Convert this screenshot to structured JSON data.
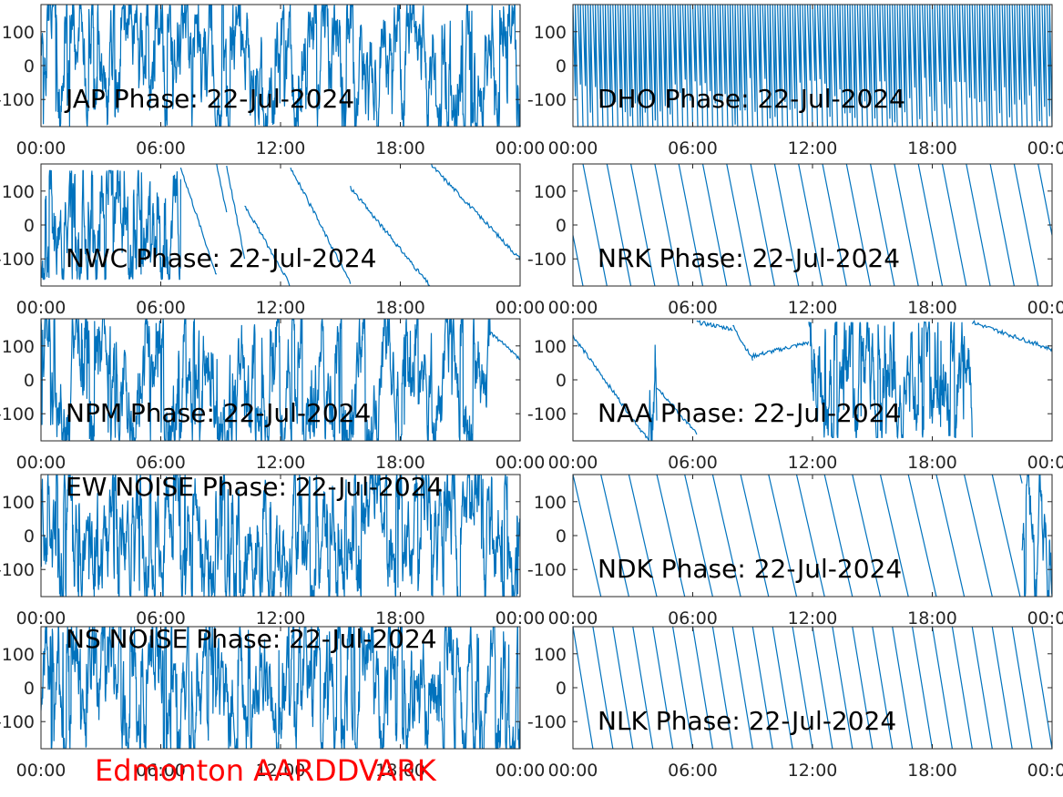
{
  "figure": {
    "footer_text": "Edmonton AARDDVARK",
    "footer_color": "#ff0000",
    "line_color": "#0072bd"
  },
  "chart_data": [
    {
      "type": "line",
      "title": "JAP Phase: 22-Jul-2024",
      "xlabel": "",
      "ylabel": "",
      "x_ticks": [
        "00:00",
        "06:00",
        "12:00",
        "18:00",
        "00:00"
      ],
      "y_ticks": [
        "-100",
        "0",
        "100"
      ],
      "xlim_hours": [
        0,
        24
      ],
      "ylim": [
        -180,
        180
      ],
      "grid": false,
      "series": [
        {
          "pattern": "noise",
          "params": [
            20,
            1,
            0.95,
            7
          ]
        }
      ]
    },
    {
      "type": "line",
      "title": "DHO Phase: 22-Jul-2024",
      "xlabel": "",
      "ylabel": "",
      "x_ticks": [
        "00:00",
        "06:00",
        "12:00",
        "18:00",
        "00:00"
      ],
      "y_ticks": [
        "-100",
        "0",
        "100"
      ],
      "xlim_hours": [
        0,
        24
      ],
      "ylim": [
        -180,
        180
      ],
      "grid": false,
      "series": [
        {
          "pattern": "fastwrap",
          "params": [
            0.25,
            11
          ]
        }
      ]
    },
    {
      "type": "line",
      "title": "NWC Phase: 22-Jul-2024",
      "xlabel": "",
      "ylabel": "",
      "x_ticks": [
        "00:00",
        "06:00",
        "12:00",
        "18:00",
        "00:00"
      ],
      "y_ticks": [
        "-100",
        "0",
        "100"
      ],
      "xlim_hours": [
        0,
        24
      ],
      "ylim": [
        -180,
        180
      ],
      "grid": false,
      "series": [
        {
          "pattern": "piecewise",
          "segments": [
            [
              0,
              7,
              "noise",
              160
            ],
            [
              7,
              8.8,
              "ramp",
              170,
              -150
            ],
            [
              8.8,
              9.3,
              "ramp",
              175,
              40
            ],
            [
              9.3,
              10.2,
              "ramp",
              175,
              -100
            ],
            [
              10.2,
              12.5,
              "ramp",
              60,
              -180
            ],
            [
              12.5,
              15.5,
              "ramp",
              170,
              -170
            ],
            [
              15.5,
              19.5,
              "ramp",
              110,
              -180
            ],
            [
              19.5,
              24,
              "ramp",
              180,
              -100
            ]
          ]
        }
      ]
    },
    {
      "type": "line",
      "title": "NRK Phase: 22-Jul-2024",
      "xlabel": "",
      "ylabel": "",
      "x_ticks": [
        "00:00",
        "06:00",
        "12:00",
        "18:00",
        "00:00"
      ],
      "y_ticks": [
        "-100",
        "0",
        "100"
      ],
      "xlim_hours": [
        0,
        24
      ],
      "ylim": [
        -180,
        180
      ],
      "grid": false,
      "series": [
        {
          "pattern": "sawtooth",
          "params": [
            1.2,
            5
          ]
        }
      ]
    },
    {
      "type": "line",
      "title": "NPM Phase: 22-Jul-2024",
      "xlabel": "",
      "ylabel": "",
      "x_ticks": [
        "00:00",
        "06:00",
        "12:00",
        "18:00",
        "00:00"
      ],
      "y_ticks": [
        "-100",
        "0",
        "100"
      ],
      "xlim_hours": [
        0,
        24
      ],
      "ylim": [
        -180,
        180
      ],
      "grid": false,
      "series": [
        {
          "pattern": "piecewise",
          "segments": [
            [
              0,
              22.5,
              "noise",
              180
            ],
            [
              22.5,
              24,
              "ramp",
              140,
              60
            ]
          ]
        }
      ]
    },
    {
      "type": "line",
      "title": "NAA Phase: 22-Jul-2024",
      "xlabel": "",
      "ylabel": "",
      "x_ticks": [
        "00:00",
        "06:00",
        "12:00",
        "18:00",
        "00:00"
      ],
      "y_ticks": [
        "-100",
        "0",
        "100"
      ],
      "xlim_hours": [
        0,
        24
      ],
      "ylim": [
        -180,
        180
      ],
      "grid": false,
      "series": [
        {
          "pattern": "piecewise",
          "segments": [
            [
              0,
              3.8,
              "ramp",
              130,
              -180
            ],
            [
              3.8,
              4.2,
              "noise",
              180
            ],
            [
              4.2,
              6.2,
              "ramp",
              -20,
              -160
            ],
            [
              6.2,
              8.0,
              "ramp",
              170,
              150
            ],
            [
              8.0,
              9.0,
              "ramp",
              160,
              60
            ],
            [
              9.0,
              11.8,
              "ramp",
              70,
              110
            ],
            [
              11.8,
              20.0,
              "noise",
              170
            ],
            [
              20.0,
              24,
              "ramp",
              170,
              90
            ]
          ]
        }
      ]
    },
    {
      "type": "line",
      "title": "EW NOISE Phase: 22-Jul-2024",
      "xlabel": "",
      "ylabel": "",
      "x_ticks": [
        "00:00",
        "06:00",
        "12:00",
        "18:00",
        "00:00"
      ],
      "y_ticks": [
        "-100",
        "0",
        "100"
      ],
      "xlim_hours": [
        0,
        24
      ],
      "ylim": [
        -180,
        180
      ],
      "grid": false,
      "series": [
        {
          "pattern": "noise",
          "params": [
            20,
            1,
            0.95,
            13
          ]
        }
      ]
    },
    {
      "type": "line",
      "title": "NDK Phase: 22-Jul-2024",
      "xlabel": "",
      "ylabel": "",
      "x_ticks": [
        "00:00",
        "06:00",
        "12:00",
        "18:00",
        "00:00"
      ],
      "y_ticks": [
        "-100",
        "0",
        "100"
      ],
      "xlim_hours": [
        0,
        24
      ],
      "ylim": [
        -180,
        180
      ],
      "grid": false,
      "series": [
        {
          "pattern": "piecewise",
          "segments": [
            [
              0,
              22.5,
              "sawtooth",
              1.4
            ],
            [
              22.5,
              24,
              "noise",
              180
            ]
          ]
        }
      ]
    },
    {
      "type": "line",
      "title": "NS NOISE Phase: 22-Jul-2024",
      "xlabel": "",
      "ylabel": "",
      "x_ticks": [
        "00:00",
        "06:00",
        "12:00",
        "18:00",
        "00:00"
      ],
      "y_ticks": [
        "-100",
        "0",
        "100"
      ],
      "xlim_hours": [
        0,
        24
      ],
      "ylim": [
        -180,
        180
      ],
      "grid": false,
      "series": [
        {
          "pattern": "noise",
          "params": [
            20,
            1,
            0.9,
            29
          ]
        }
      ]
    },
    {
      "type": "line",
      "title": "NLK Phase: 22-Jul-2024",
      "xlabel": "",
      "ylabel": "",
      "x_ticks": [
        "00:00",
        "06:00",
        "12:00",
        "18:00",
        "00:00"
      ],
      "y_ticks": [
        "-100",
        "0",
        "100"
      ],
      "xlim_hours": [
        0,
        24
      ],
      "ylim": [
        -180,
        180
      ],
      "grid": false,
      "series": [
        {
          "pattern": "sawtooth",
          "params": [
            1.0,
            0
          ]
        }
      ]
    }
  ]
}
